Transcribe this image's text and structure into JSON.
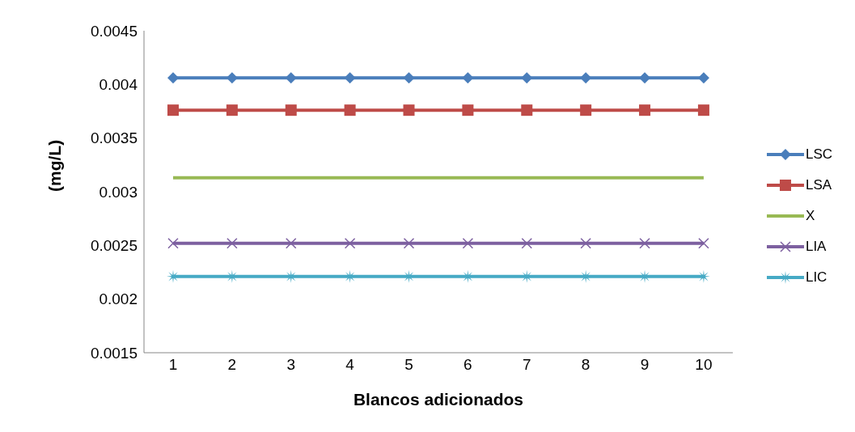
{
  "chart_data": {
    "type": "line",
    "xlabel": "Blancos adicionados",
    "ylabel": "(mg/L)",
    "categories": [
      "1",
      "2",
      "3",
      "4",
      "5",
      "6",
      "7",
      "8",
      "9",
      "10"
    ],
    "series": [
      {
        "name": "LSC",
        "color": "#4a7ebb",
        "marker": "diamond",
        "values": [
          0.00406,
          0.00406,
          0.00406,
          0.00406,
          0.00406,
          0.00406,
          0.00406,
          0.00406,
          0.00406,
          0.00406
        ]
      },
      {
        "name": "LSA",
        "color": "#be4b48",
        "marker": "square",
        "values": [
          0.00376,
          0.00376,
          0.00376,
          0.00376,
          0.00376,
          0.00376,
          0.00376,
          0.00376,
          0.00376,
          0.00376
        ]
      },
      {
        "name": "X",
        "color": "#98b954",
        "marker": "none",
        "values": [
          0.00313,
          0.00313,
          0.00313,
          0.00313,
          0.00313,
          0.00313,
          0.00313,
          0.00313,
          0.00313,
          0.00313
        ]
      },
      {
        "name": "LIA",
        "color": "#7d60a0",
        "marker": "cross",
        "values": [
          0.00252,
          0.00252,
          0.00252,
          0.00252,
          0.00252,
          0.00252,
          0.00252,
          0.00252,
          0.00252,
          0.00252
        ]
      },
      {
        "name": "LIC",
        "color": "#46aac5",
        "marker": "star",
        "values": [
          0.00221,
          0.00221,
          0.00221,
          0.00221,
          0.00221,
          0.00221,
          0.00221,
          0.00221,
          0.00221,
          0.00221
        ]
      }
    ],
    "ylim": [
      0.0015,
      0.0045
    ],
    "yticks": [
      0.0015,
      0.002,
      0.0025,
      0.003,
      0.0035,
      0.004,
      0.0045
    ],
    "grid": false,
    "legend": "right"
  }
}
